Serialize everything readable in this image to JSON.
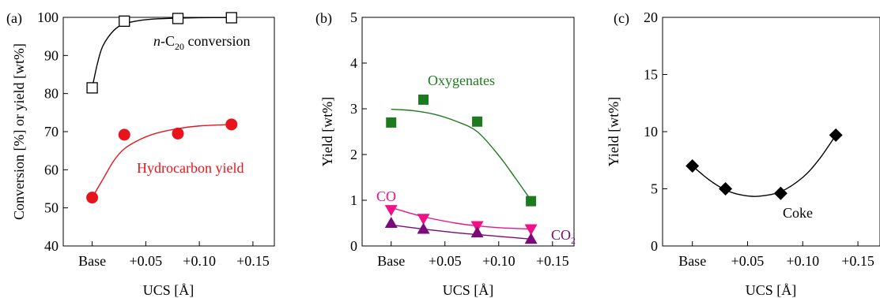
{
  "chart_data": [
    {
      "panel_label": "(a)",
      "type": "scatter",
      "xlabel": "UCS [Å]",
      "ylabel": "Conversion [%] or yield [wt%]",
      "x_tick_labels": [
        "Base",
        "+0.05",
        "+0.10",
        "+0.15"
      ],
      "x_tick_values": [
        0,
        0.05,
        0.1,
        0.15
      ],
      "xlim": [
        -0.027,
        0.17
      ],
      "ylim": [
        40,
        100
      ],
      "y_ticks": [
        40,
        50,
        60,
        70,
        80,
        90,
        100
      ],
      "grid": false,
      "legend": "none",
      "series": [
        {
          "name": "n-C20 conversion",
          "marker": "open-square",
          "color": "#000000",
          "x": [
            0,
            0.03,
            0.08,
            0.13
          ],
          "y": [
            81.5,
            99.0,
            99.7,
            99.9
          ],
          "fit": [
            [
              0,
              81.5
            ],
            [
              0.005,
              88
            ],
            [
              0.01,
              92.5
            ],
            [
              0.02,
              96.5
            ],
            [
              0.03,
              98.3
            ],
            [
              0.045,
              99.2
            ],
            [
              0.06,
              99.6
            ],
            [
              0.08,
              99.8
            ],
            [
              0.1,
              99.9
            ],
            [
              0.13,
              99.95
            ]
          ]
        },
        {
          "name": "Hydrocarbon yield",
          "marker": "filled-circle",
          "color": "#e8141b",
          "x": [
            0,
            0.03,
            0.08,
            0.13
          ],
          "y": [
            52.7,
            69.2,
            69.5,
            71.9
          ],
          "fit": [
            [
              0,
              52.7
            ],
            [
              0.01,
              57.5
            ],
            [
              0.02,
              62.3
            ],
            [
              0.03,
              65.5
            ],
            [
              0.045,
              68.0
            ],
            [
              0.06,
              69.6
            ],
            [
              0.08,
              70.8
            ],
            [
              0.1,
              71.5
            ],
            [
              0.13,
              71.9
            ]
          ]
        }
      ],
      "annotations": [
        {
          "text": "n-C",
          "sub": "20",
          "after": " conversion",
          "color": "#000000"
        },
        {
          "text": "Hydrocarbon yield",
          "color": "#e8141b"
        }
      ]
    },
    {
      "panel_label": "(b)",
      "type": "scatter",
      "xlabel": "UCS [Å]",
      "ylabel": "Yield [wt%]",
      "x_tick_labels": [
        "Base",
        "+0.05",
        "+0.10",
        "+0.15"
      ],
      "x_tick_values": [
        0,
        0.05,
        0.1,
        0.15
      ],
      "xlim": [
        -0.027,
        0.17
      ],
      "ylim": [
        0,
        5
      ],
      "y_ticks": [
        0,
        1,
        2,
        3,
        4,
        5
      ],
      "grid": false,
      "legend": "none",
      "series": [
        {
          "name": "Oxygenates",
          "marker": "filled-square",
          "color": "#1e7a1e",
          "x": [
            0,
            0.03,
            0.08,
            0.13
          ],
          "y": [
            2.7,
            3.2,
            2.72,
            0.98
          ],
          "fit": [
            [
              0,
              2.99
            ],
            [
              0.02,
              2.96
            ],
            [
              0.04,
              2.88
            ],
            [
              0.06,
              2.73
            ],
            [
              0.08,
              2.5
            ],
            [
              0.1,
              1.98
            ],
            [
              0.115,
              1.5
            ],
            [
              0.13,
              1.0
            ]
          ]
        },
        {
          "name": "CO",
          "marker": "filled-triangle-down",
          "color": "#ee1187",
          "x": [
            0,
            0.03,
            0.08,
            0.13
          ],
          "y": [
            0.79,
            0.6,
            0.44,
            0.37
          ],
          "fit": [
            [
              0,
              0.84
            ],
            [
              0.03,
              0.64
            ],
            [
              0.06,
              0.5
            ],
            [
              0.08,
              0.44
            ],
            [
              0.1,
              0.4
            ],
            [
              0.13,
              0.37
            ]
          ]
        },
        {
          "name": "CO2",
          "marker": "filled-triangle-up",
          "color": "#7a0a7a",
          "x": [
            0,
            0.03,
            0.08,
            0.13
          ],
          "y": [
            0.5,
            0.37,
            0.29,
            0.15
          ],
          "fit": [
            [
              0,
              0.46
            ],
            [
              0.03,
              0.37
            ],
            [
              0.06,
              0.29
            ],
            [
              0.08,
              0.25
            ],
            [
              0.1,
              0.21
            ],
            [
              0.13,
              0.15
            ]
          ]
        }
      ],
      "annotations": [
        {
          "text": "Oxygenates",
          "color": "#1e7a1e"
        },
        {
          "text": "CO",
          "color": "#ee1187"
        },
        {
          "text": "CO",
          "sub": "2",
          "color": "#7a0a7a"
        }
      ]
    },
    {
      "panel_label": "(c)",
      "type": "scatter",
      "xlabel": "UCS [Å]",
      "ylabel": "Yield [wt%]",
      "x_tick_labels": [
        "Base",
        "+0.05",
        "+0.10",
        "+0.15"
      ],
      "x_tick_values": [
        0,
        0.05,
        0.1,
        0.15
      ],
      "xlim": [
        -0.027,
        0.17
      ],
      "ylim": [
        0,
        20
      ],
      "y_ticks": [
        0,
        5,
        10,
        15,
        20
      ],
      "grid": false,
      "legend": "none",
      "series": [
        {
          "name": "Coke",
          "marker": "filled-diamond",
          "color": "#000000",
          "x": [
            0,
            0.03,
            0.08,
            0.13
          ],
          "y": [
            7.0,
            5.0,
            4.6,
            9.7
          ],
          "fit": [
            [
              0,
              7.0
            ],
            [
              0.015,
              5.8
            ],
            [
              0.03,
              4.9
            ],
            [
              0.045,
              4.45
            ],
            [
              0.06,
              4.35
            ],
            [
              0.08,
              4.75
            ],
            [
              0.1,
              6.0
            ],
            [
              0.115,
              7.6
            ],
            [
              0.13,
              9.7
            ]
          ]
        }
      ],
      "annotations": [
        {
          "text": "Coke",
          "color": "#000000"
        }
      ]
    }
  ]
}
